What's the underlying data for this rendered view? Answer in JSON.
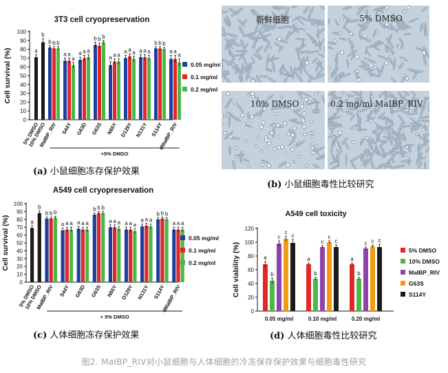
{
  "figure_caption": "图2. MaIBP_RIV对小鼠细胞与人体细胞的冷冻保存保护效果与细胞毒性研究",
  "colors": {
    "black": "#1a1a1a",
    "blue": "#1f3f9f",
    "red": "#e32626",
    "green": "#4cb848",
    "purple": "#8e44ad",
    "orange": "#f39c12"
  },
  "panel_a": {
    "caption_letter": "(a)",
    "caption_text": "小鼠细胞冻存保护效果",
    "group_label": "+5% DMSO"
  },
  "panel_b": {
    "caption_letter": "(b)",
    "caption_text": "小鼠细胞毒性比较研究",
    "images": [
      {
        "label": "新鲜细胞"
      },
      {
        "label": "5% DMSO"
      },
      {
        "label": "10% DMSO"
      },
      {
        "label": "0.2 mg/ml MaIBP_RIV"
      }
    ]
  },
  "panel_c": {
    "caption_letter": "(c)",
    "caption_text": "人体细胞冻存保护效果",
    "group_label": "+ 5% DMSO"
  },
  "panel_d": {
    "caption_letter": "(d)",
    "caption_text": "人体细胞毒性比较研究"
  },
  "chart_data": [
    {
      "id": "a",
      "type": "bar",
      "title": "3T3 cell cryopreservation",
      "ylabel": "Cell survival (%)",
      "ylim": [
        0,
        100
      ],
      "yticks": [
        0,
        10,
        20,
        30,
        40,
        50,
        60,
        70,
        80,
        90,
        100
      ],
      "legend": [
        {
          "name": "0.05 mg/ml",
          "color": "#1f3f9f"
        },
        {
          "name": "0.1 mg/ml",
          "color": "#e32626"
        },
        {
          "name": "0.2 mg/ml",
          "color": "#4cb848"
        }
      ],
      "groups": [
        {
          "label": "5% DMSO",
          "bars": [
            {
              "value": 71,
              "err": 3,
              "color": "#1a1a1a",
              "letter": "a"
            }
          ]
        },
        {
          "label": "10% DMSO",
          "bars": [
            {
              "value": 88,
              "err": 4,
              "color": "#1a1a1a",
              "letter": "b"
            }
          ]
        },
        {
          "label": "MaIBP_RIV",
          "bars": [
            {
              "value": 82,
              "err": 2,
              "color": "#1f3f9f",
              "letter": "b"
            },
            {
              "value": 81,
              "err": 2,
              "color": "#e32626",
              "letter": "b"
            },
            {
              "value": 81,
              "err": 2,
              "color": "#4cb848",
              "letter": "b"
            }
          ]
        },
        {
          "label": "S44Y",
          "bars": [
            {
              "value": 67,
              "err": 3,
              "color": "#1f3f9f",
              "letter": "a"
            },
            {
              "value": 67,
              "err": 3,
              "color": "#e32626",
              "letter": "a"
            },
            {
              "value": 62,
              "err": 3,
              "color": "#4cb848",
              "letter": "a"
            }
          ]
        },
        {
          "label": "G63D",
          "bars": [
            {
              "value": 68,
              "err": 3,
              "color": "#1f3f9f",
              "letter": "a"
            },
            {
              "value": 70,
              "err": 3,
              "color": "#e32626",
              "letter": "a"
            },
            {
              "value": 71,
              "err": 3,
              "color": "#4cb848",
              "letter": "a"
            }
          ]
        },
        {
          "label": "G63S",
          "bars": [
            {
              "value": 85,
              "err": 3,
              "color": "#1f3f9f",
              "letter": "b"
            },
            {
              "value": 84,
              "err": 3,
              "color": "#e32626",
              "letter": "b"
            },
            {
              "value": 88,
              "err": 2,
              "color": "#4cb848",
              "letter": "b"
            }
          ]
        },
        {
          "label": "N65Y",
          "bars": [
            {
              "value": 62,
              "err": 4,
              "color": "#1f3f9f",
              "letter": "a"
            },
            {
              "value": 66,
              "err": 3,
              "color": "#e32626",
              "letter": "a"
            },
            {
              "value": 66,
              "err": 3,
              "color": "#4cb848",
              "letter": "a"
            }
          ]
        },
        {
          "label": "D129Y",
          "bars": [
            {
              "value": 70,
              "err": 3,
              "color": "#1f3f9f",
              "letter": "a"
            },
            {
              "value": 72,
              "err": 3,
              "color": "#e32626",
              "letter": "a"
            },
            {
              "value": 69,
              "err": 3,
              "color": "#4cb848",
              "letter": "a"
            }
          ]
        },
        {
          "label": "N131Y",
          "bars": [
            {
              "value": 71,
              "err": 3,
              "color": "#1f3f9f",
              "letter": "a"
            },
            {
              "value": 71,
              "err": 3,
              "color": "#e32626",
              "letter": "a"
            },
            {
              "value": 70,
              "err": 3,
              "color": "#4cb848",
              "letter": "a"
            }
          ]
        },
        {
          "label": "S114Y",
          "bars": [
            {
              "value": 81,
              "err": 2,
              "color": "#1f3f9f",
              "letter": "b"
            },
            {
              "value": 81,
              "err": 2,
              "color": "#e32626",
              "letter": "b"
            },
            {
              "value": 80,
              "err": 2,
              "color": "#4cb848",
              "letter": "b"
            }
          ]
        },
        {
          "label": "dMaIBP_RIV",
          "bars": [
            {
              "value": 69,
              "err": 4,
              "color": "#1f3f9f",
              "letter": "a"
            },
            {
              "value": 69,
              "err": 4,
              "color": "#e32626",
              "letter": "a"
            },
            {
              "value": 65,
              "err": 4,
              "color": "#4cb848",
              "letter": "a"
            }
          ]
        }
      ]
    },
    {
      "id": "c",
      "type": "bar",
      "title": "A549 cell cryopreservation",
      "ylabel": "Cell survival (%)",
      "ylim": [
        0,
        100
      ],
      "yticks": [
        0,
        10,
        20,
        30,
        40,
        50,
        60,
        70,
        80,
        90,
        100
      ],
      "legend": [
        {
          "name": "0.05 mg/ml",
          "color": "#1f3f9f"
        },
        {
          "name": "0.1 mg/ml",
          "color": "#e32626"
        },
        {
          "name": "0.2 mg/ml",
          "color": "#4cb848"
        }
      ],
      "groups": [
        {
          "label": "5% DMSO",
          "bars": [
            {
              "value": 69,
              "err": 3,
              "color": "#1a1a1a",
              "letter": "a"
            }
          ]
        },
        {
          "label": "10% DMSO",
          "bars": [
            {
              "value": 88,
              "err": 3,
              "color": "#1a1a1a",
              "letter": "b"
            }
          ]
        },
        {
          "label": "MaIBP_RIV",
          "bars": [
            {
              "value": 81,
              "err": 2,
              "color": "#1f3f9f",
              "letter": "b"
            },
            {
              "value": 81,
              "err": 2,
              "color": "#e32626",
              "letter": "b"
            },
            {
              "value": 82,
              "err": 2,
              "color": "#4cb848",
              "letter": "b"
            }
          ]
        },
        {
          "label": "S44Y",
          "bars": [
            {
              "value": 66,
              "err": 3,
              "color": "#1f3f9f",
              "letter": "a"
            },
            {
              "value": 67,
              "err": 3,
              "color": "#e32626",
              "letter": "a"
            },
            {
              "value": 67,
              "err": 3,
              "color": "#4cb848",
              "letter": "a"
            }
          ]
        },
        {
          "label": "G63D",
          "bars": [
            {
              "value": 68,
              "err": 3,
              "color": "#1f3f9f",
              "letter": "a"
            },
            {
              "value": 67,
              "err": 3,
              "color": "#e32626",
              "letter": "a"
            },
            {
              "value": 67,
              "err": 3,
              "color": "#4cb848",
              "letter": "a"
            }
          ]
        },
        {
          "label": "G63S",
          "bars": [
            {
              "value": 86,
              "err": 2,
              "color": "#1f3f9f",
              "letter": "b"
            },
            {
              "value": 88,
              "err": 2,
              "color": "#e32626",
              "letter": "b"
            },
            {
              "value": 88,
              "err": 2,
              "color": "#4cb848",
              "letter": "b"
            }
          ]
        },
        {
          "label": "N65Y",
          "bars": [
            {
              "value": 70,
              "err": 3,
              "color": "#1f3f9f",
              "letter": "a"
            },
            {
              "value": 70,
              "err": 3,
              "color": "#e32626",
              "letter": "a"
            },
            {
              "value": 68,
              "err": 3,
              "color": "#4cb848",
              "letter": "a"
            }
          ]
        },
        {
          "label": "D129Y",
          "bars": [
            {
              "value": 67,
              "err": 3,
              "color": "#1f3f9f",
              "letter": "a"
            },
            {
              "value": 67,
              "err": 3,
              "color": "#e32626",
              "letter": "a"
            },
            {
              "value": 65,
              "err": 3,
              "color": "#4cb848",
              "letter": "a"
            }
          ]
        },
        {
          "label": "N131Y",
          "bars": [
            {
              "value": 71,
              "err": 3,
              "color": "#1f3f9f",
              "letter": "a"
            },
            {
              "value": 72,
              "err": 3,
              "color": "#e32626",
              "letter": "a"
            },
            {
              "value": 71,
              "err": 3,
              "color": "#4cb848",
              "letter": "a"
            }
          ]
        },
        {
          "label": "S114Y",
          "bars": [
            {
              "value": 80,
              "err": 2,
              "color": "#1f3f9f",
              "letter": "b"
            },
            {
              "value": 81,
              "err": 2,
              "color": "#e32626",
              "letter": "b"
            },
            {
              "value": 80,
              "err": 2,
              "color": "#4cb848",
              "letter": "b"
            }
          ]
        },
        {
          "label": "dMaIBP_RIV",
          "bars": [
            {
              "value": 67,
              "err": 3,
              "color": "#1f3f9f",
              "letter": "a"
            },
            {
              "value": 67,
              "err": 3,
              "color": "#e32626",
              "letter": "a"
            },
            {
              "value": 67,
              "err": 3,
              "color": "#4cb848",
              "letter": "a"
            }
          ]
        }
      ]
    },
    {
      "id": "d",
      "type": "bar",
      "title": "A549 cell toxicity",
      "ylabel": "Cell viability (%)",
      "ylim": [
        0,
        120
      ],
      "yticks": [
        0,
        20,
        40,
        60,
        80,
        100,
        120
      ],
      "legend": [
        {
          "name": "5% DMSO",
          "color": "#e32626"
        },
        {
          "name": "10% DMSO",
          "color": "#4cb848"
        },
        {
          "name": "MaIBP_RIV",
          "color": "#8e44ad"
        },
        {
          "name": "G63S",
          "color": "#f39c12"
        },
        {
          "name": "S114Y",
          "color": "#1a1a1a"
        }
      ],
      "groups": [
        {
          "label": "0.05 mg/ml",
          "bars": [
            {
              "value": 68,
              "err": 4,
              "color": "#e32626",
              "letter": "a"
            },
            {
              "value": 44,
              "err": 4,
              "color": "#4cb848",
              "letter": "b"
            },
            {
              "value": 98,
              "err": 4,
              "color": "#8e44ad",
              "letter": "c"
            },
            {
              "value": 105,
              "err": 4,
              "color": "#f39c12",
              "letter": "c"
            },
            {
              "value": 99,
              "err": 5,
              "color": "#1a1a1a",
              "letter": "c"
            }
          ]
        },
        {
          "label": "0.10 mg/ml",
          "bars": [
            {
              "value": 68,
              "err": 2,
              "color": "#e32626",
              "letter": "a"
            },
            {
              "value": 47,
              "err": 2,
              "color": "#4cb848",
              "letter": "b"
            },
            {
              "value": 93,
              "err": 2,
              "color": "#8e44ad",
              "letter": "c"
            },
            {
              "value": 100,
              "err": 2,
              "color": "#f39c12",
              "letter": "c"
            },
            {
              "value": 93,
              "err": 3,
              "color": "#1a1a1a",
              "letter": "c"
            }
          ]
        },
        {
          "label": "0.20 mg/ml",
          "bars": [
            {
              "value": 68,
              "err": 2,
              "color": "#e32626",
              "letter": "a"
            },
            {
              "value": 47,
              "err": 2,
              "color": "#4cb848",
              "letter": "b"
            },
            {
              "value": 91,
              "err": 2,
              "color": "#8e44ad",
              "letter": "c"
            },
            {
              "value": 94,
              "err": 2,
              "color": "#f39c12",
              "letter": "c"
            },
            {
              "value": 93,
              "err": 4,
              "color": "#1a1a1a",
              "letter": "c"
            }
          ]
        }
      ]
    }
  ]
}
